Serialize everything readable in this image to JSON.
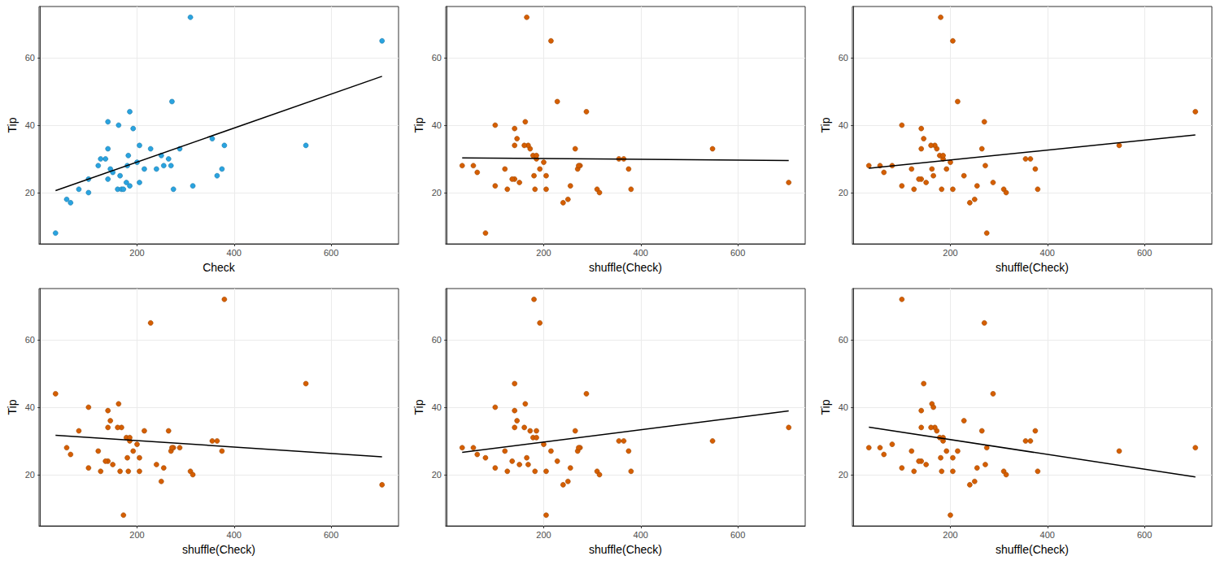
{
  "chart_data": [
    {
      "type": "scatter",
      "x_label": "Check",
      "y_label": "Tip",
      "color": "#29a3e0",
      "x": [
        32,
        55,
        63,
        80,
        100,
        100,
        120,
        125,
        135,
        140,
        140,
        140,
        145,
        150,
        160,
        162,
        165,
        168,
        172,
        178,
        180,
        182,
        185,
        185,
        192,
        200,
        205,
        205,
        215,
        228,
        240,
        250,
        255,
        265,
        270,
        272,
        275,
        288,
        310,
        315,
        355,
        365,
        375,
        380,
        548,
        705
      ],
      "values": [
        8,
        18,
        17,
        21,
        20,
        24,
        28,
        30,
        30,
        41,
        33,
        24,
        27,
        26,
        21,
        40,
        25,
        21,
        21,
        23,
        28,
        31,
        44,
        22,
        39,
        29,
        34,
        23,
        27,
        33,
        27,
        31,
        28,
        30,
        28,
        47,
        21,
        33,
        72,
        22,
        36,
        25,
        27,
        34,
        34,
        65
      ],
      "fit": {
        "x": [
          32,
          705
        ],
        "y": [
          20.6,
          54.5
        ],
        "color": "#000000"
      },
      "xlim": [
        -2,
        739
      ],
      "xticks": [
        200,
        400,
        600
      ],
      "ylim": [
        4.8,
        75.2
      ],
      "yticks": [
        20,
        40,
        60
      ],
      "grid": true
    },
    {
      "type": "scatter",
      "x_label": "shuffle(Check)",
      "y_label": "Tip",
      "color": "#d55e00",
      "x": [
        80,
        250,
        240,
        310,
        315,
        140,
        32,
        185,
        355,
        162,
        172,
        135,
        270,
        63,
        380,
        100,
        205,
        182,
        205,
        150,
        55,
        178,
        288,
        255,
        140,
        200,
        168,
        705,
        192,
        548,
        120,
        185,
        275,
        365,
        272,
        228,
        125,
        265,
        165,
        100,
        145,
        180,
        375,
        140,
        160,
        215
      ],
      "values": [
        8,
        18,
        17,
        21,
        20,
        24,
        28,
        30,
        30,
        41,
        33,
        24,
        27,
        26,
        21,
        40,
        25,
        21,
        21,
        23,
        28,
        31,
        44,
        22,
        39,
        29,
        34,
        23,
        27,
        33,
        27,
        31,
        28,
        30,
        28,
        47,
        21,
        33,
        72,
        22,
        36,
        25,
        27,
        34,
        34,
        65
      ],
      "fit": {
        "x": [
          32,
          705
        ],
        "y": [
          30.3,
          29.5
        ],
        "color": "#000000"
      },
      "xlim": [
        -2,
        739
      ],
      "xticks": [
        200,
        400,
        600
      ],
      "ylim": [
        4.8,
        75.2
      ],
      "yticks": [
        20,
        40,
        60
      ],
      "grid": true
    },
    {
      "type": "scatter",
      "x_label": "shuffle(Check)",
      "y_label": "Tip",
      "color": "#d55e00",
      "x": [
        275,
        250,
        240,
        310,
        315,
        140,
        32,
        185,
        355,
        270,
        172,
        135,
        162,
        63,
        380,
        100,
        228,
        182,
        205,
        150,
        55,
        178,
        705,
        255,
        140,
        200,
        168,
        288,
        192,
        140,
        120,
        185,
        80,
        365,
        272,
        215,
        125,
        265,
        180,
        100,
        145,
        165,
        375,
        548,
        160,
        205
      ],
      "values": [
        8,
        18,
        17,
        21,
        20,
        24,
        28,
        30,
        30,
        41,
        33,
        24,
        27,
        26,
        21,
        40,
        25,
        21,
        21,
        23,
        28,
        31,
        44,
        22,
        39,
        29,
        34,
        23,
        27,
        33,
        27,
        31,
        28,
        30,
        28,
        47,
        21,
        33,
        72,
        22,
        36,
        25,
        27,
        34,
        34,
        65
      ],
      "fit": {
        "x": [
          32,
          705
        ],
        "y": [
          27.2,
          37.1
        ],
        "color": "#000000"
      },
      "xlim": [
        -2,
        739
      ],
      "xticks": [
        200,
        400,
        600
      ],
      "ylim": [
        4.8,
        75.2
      ],
      "yticks": [
        20,
        40,
        60
      ],
      "grid": true
    },
    {
      "type": "scatter",
      "x_label": "shuffle(Check)",
      "y_label": "Tip",
      "color": "#d55e00",
      "x": [
        172,
        250,
        705,
        310,
        315,
        140,
        288,
        185,
        355,
        162,
        80,
        135,
        270,
        63,
        165,
        100,
        205,
        182,
        205,
        150,
        55,
        178,
        32,
        255,
        140,
        200,
        168,
        240,
        192,
        215,
        120,
        185,
        275,
        365,
        272,
        548,
        125,
        265,
        380,
        100,
        145,
        180,
        375,
        140,
        160,
        228
      ],
      "values": [
        8,
        18,
        17,
        21,
        20,
        24,
        28,
        30,
        30,
        41,
        33,
        24,
        27,
        26,
        21,
        40,
        25,
        21,
        21,
        23,
        28,
        31,
        44,
        22,
        39,
        29,
        34,
        23,
        27,
        33,
        27,
        31,
        28,
        30,
        28,
        47,
        21,
        33,
        72,
        22,
        36,
        25,
        27,
        34,
        34,
        65
      ],
      "fit": {
        "x": [
          32,
          705
        ],
        "y": [
          31.7,
          25.3
        ],
        "color": "#000000"
      },
      "xlim": [
        -2,
        739
      ],
      "xticks": [
        200,
        400,
        600
      ],
      "ylim": [
        4.8,
        75.2
      ],
      "yticks": [
        20,
        40,
        60
      ],
      "grid": true
    },
    {
      "type": "scatter",
      "x_label": "shuffle(Check)",
      "y_label": "Tip",
      "color": "#d55e00",
      "x": [
        205,
        250,
        240,
        310,
        315,
        228,
        32,
        548,
        355,
        162,
        172,
        135,
        270,
        63,
        380,
        100,
        80,
        182,
        205,
        150,
        55,
        178,
        288,
        255,
        140,
        200,
        705,
        168,
        215,
        185,
        120,
        185,
        275,
        365,
        272,
        140,
        125,
        265,
        180,
        100,
        145,
        165,
        375,
        140,
        160,
        192
      ],
      "values": [
        8,
        18,
        17,
        21,
        20,
        24,
        28,
        30,
        30,
        41,
        33,
        24,
        27,
        26,
        21,
        40,
        25,
        21,
        21,
        23,
        28,
        31,
        44,
        22,
        39,
        29,
        34,
        23,
        27,
        33,
        27,
        31,
        28,
        30,
        28,
        47,
        21,
        33,
        72,
        22,
        36,
        25,
        27,
        34,
        34,
        65
      ],
      "fit": {
        "x": [
          32,
          705
        ],
        "y": [
          26.6,
          38.9
        ],
        "color": "#000000"
      },
      "xlim": [
        -2,
        739
      ],
      "xticks": [
        200,
        400,
        600
      ],
      "ylim": [
        4.8,
        75.2
      ],
      "yticks": [
        20,
        40,
        60
      ],
      "grid": true
    },
    {
      "type": "scatter",
      "x_label": "shuffle(Check)",
      "y_label": "Tip",
      "color": "#d55e00",
      "x": [
        200,
        250,
        240,
        310,
        315,
        140,
        32,
        185,
        355,
        162,
        172,
        135,
        215,
        63,
        380,
        165,
        205,
        182,
        205,
        150,
        55,
        178,
        288,
        255,
        140,
        80,
        168,
        272,
        192,
        375,
        120,
        185,
        275,
        365,
        705,
        145,
        125,
        265,
        100,
        100,
        228,
        180,
        548,
        140,
        160,
        270
      ],
      "values": [
        8,
        18,
        17,
        21,
        20,
        24,
        28,
        30,
        30,
        41,
        33,
        24,
        27,
        26,
        21,
        40,
        25,
        21,
        21,
        23,
        28,
        31,
        44,
        22,
        39,
        29,
        34,
        23,
        27,
        33,
        27,
        31,
        28,
        30,
        28,
        47,
        21,
        33,
        72,
        22,
        36,
        25,
        27,
        34,
        34,
        65
      ],
      "fit": {
        "x": [
          32,
          705
        ],
        "y": [
          34.1,
          19.3
        ],
        "color": "#000000"
      },
      "xlim": [
        -2,
        739
      ],
      "xticks": [
        200,
        400,
        600
      ],
      "ylim": [
        4.8,
        75.2
      ],
      "yticks": [
        20,
        40,
        60
      ],
      "grid": true
    }
  ]
}
